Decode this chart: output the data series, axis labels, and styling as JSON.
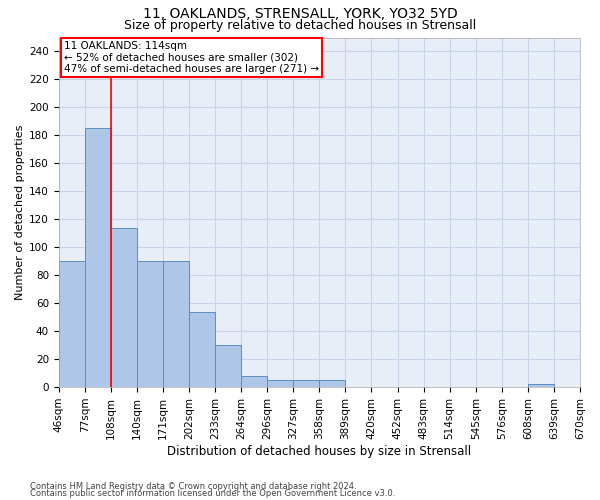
{
  "title1": "11, OAKLANDS, STRENSALL, YORK, YO32 5YD",
  "title2": "Size of property relative to detached houses in Strensall",
  "xlabel": "Distribution of detached houses by size in Strensall",
  "ylabel": "Number of detached properties",
  "footer1": "Contains HM Land Registry data © Crown copyright and database right 2024.",
  "footer2": "Contains public sector information licensed under the Open Government Licence v3.0.",
  "bins": [
    "46sqm",
    "77sqm",
    "108sqm",
    "140sqm",
    "171sqm",
    "202sqm",
    "233sqm",
    "264sqm",
    "296sqm",
    "327sqm",
    "358sqm",
    "389sqm",
    "420sqm",
    "452sqm",
    "483sqm",
    "514sqm",
    "545sqm",
    "576sqm",
    "608sqm",
    "639sqm",
    "670sqm"
  ],
  "bar_values": [
    90,
    185,
    114,
    90,
    90,
    54,
    30,
    8,
    5,
    5,
    5,
    0,
    0,
    0,
    0,
    0,
    0,
    0,
    2,
    0
  ],
  "bar_color": "#aec6e8",
  "bar_edge_color": "#5a8fc0",
  "vline_color": "red",
  "vline_bin_index": 2,
  "annotation_line1": "11 OAKLANDS: 114sqm",
  "annotation_line2": "← 52% of detached houses are smaller (302)",
  "annotation_line3": "47% of semi-detached houses are larger (271) →",
  "annotation_box_color": "red",
  "ylim": [
    0,
    250
  ],
  "yticks": [
    0,
    20,
    40,
    60,
    80,
    100,
    120,
    140,
    160,
    180,
    200,
    220,
    240
  ],
  "grid_color": "#c8d4e8",
  "background_color": "#e8eef8",
  "title1_fontsize": 10,
  "title2_fontsize": 9,
  "xlabel_fontsize": 8.5,
  "ylabel_fontsize": 8,
  "tick_fontsize": 7.5,
  "annot_fontsize": 7.5,
  "footer_fontsize": 6
}
